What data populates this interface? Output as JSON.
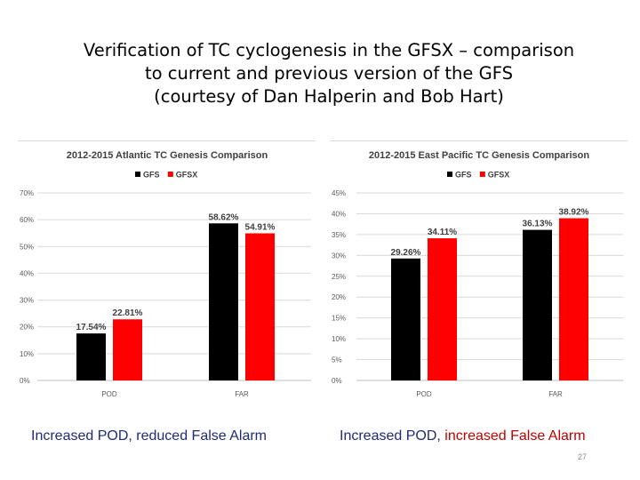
{
  "slide": {
    "title_lines": [
      "Verification of TC cyclogenesis in the GFSX – comparison",
      "to current and previous version of the GFS",
      "(courtesy of Dan Halperin and Bob Hart)"
    ],
    "caption_left": "Increased POD, reduced False Alarm",
    "caption_right_part1": "Increased POD, ",
    "caption_right_part2": "increased False Alarm",
    "caption_right_highlight_color": "#c00000",
    "page_number": "27"
  },
  "chart_data": [
    {
      "type": "bar",
      "title": "2012-2015 Atlantic TC Genesis Comparison",
      "categories": [
        "POD",
        "FAR"
      ],
      "series": [
        {
          "name": "GFS",
          "color": "#000000",
          "values": [
            17.54,
            58.62
          ],
          "labels": [
            "17.54%",
            "58.62%"
          ]
        },
        {
          "name": "GFSX",
          "color": "#ff0000",
          "values": [
            22.81,
            54.91
          ],
          "labels": [
            "22.81%",
            "54.91%"
          ]
        }
      ],
      "ylim": [
        0,
        70
      ],
      "yticks": [
        "0%",
        "10%",
        "20%",
        "30%",
        "40%",
        "50%",
        "60%",
        "70%"
      ],
      "ytick_values": [
        0,
        10,
        20,
        30,
        40,
        50,
        60,
        70
      ],
      "grid": true,
      "legend": "top"
    },
    {
      "type": "bar",
      "title": "2012-2015 East Pacific TC Genesis Comparison",
      "categories": [
        "POD",
        "FAR"
      ],
      "series": [
        {
          "name": "GFS",
          "color": "#000000",
          "values": [
            29.26,
            36.13
          ],
          "labels": [
            "29.26%",
            "36.13%"
          ]
        },
        {
          "name": "GFSX",
          "color": "#ff0000",
          "values": [
            34.11,
            38.92
          ],
          "labels": [
            "34.11%",
            "38.92%"
          ]
        }
      ],
      "ylim": [
        0,
        45
      ],
      "yticks": [
        "0%",
        "5%",
        "10%",
        "15%",
        "20%",
        "25%",
        "30%",
        "35%",
        "40%",
        "45%"
      ],
      "ytick_values": [
        0,
        5,
        10,
        15,
        20,
        25,
        30,
        35,
        40,
        45
      ],
      "grid": true,
      "legend": "top"
    }
  ]
}
